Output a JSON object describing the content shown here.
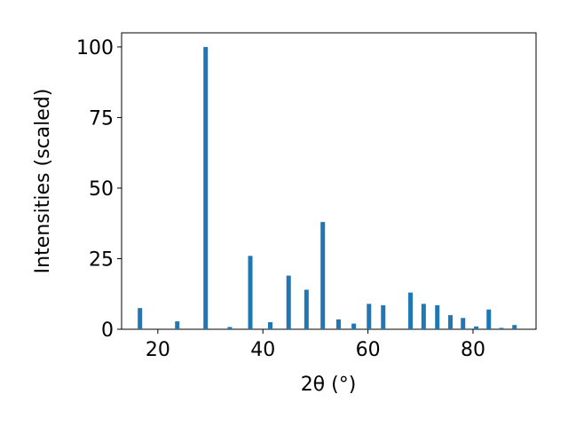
{
  "chart_data": {
    "type": "bar",
    "xlabel": "2θ (°)",
    "ylabel": "Intensities (scaled)",
    "x": [
      16.6,
      23.7,
      29.1,
      33.7,
      37.6,
      41.4,
      44.9,
      48.3,
      51.4,
      54.4,
      57.3,
      60.2,
      62.9,
      68.1,
      70.6,
      73.2,
      75.7,
      78.1,
      80.6,
      83.0,
      85.4,
      87.9
    ],
    "values": [
      7.5,
      2.8,
      100,
      0.8,
      26,
      2.5,
      19,
      14,
      38,
      3.5,
      2,
      9,
      8.5,
      13,
      9,
      8.5,
      5,
      4,
      1,
      7,
      0.5,
      1.5
    ],
    "color": "#1f77b4",
    "xlim": [
      13.1,
      92.0
    ],
    "xticks": [
      20,
      40,
      60,
      80
    ],
    "ylim": [
      0,
      105
    ],
    "yticks": [
      0,
      25,
      50,
      75,
      100
    ]
  }
}
